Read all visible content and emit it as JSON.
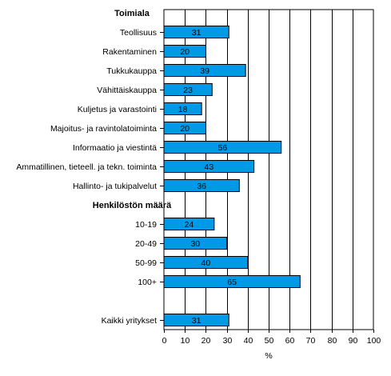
{
  "chart_data": {
    "type": "bar",
    "orientation": "horizontal",
    "xlabel": "%",
    "xlim": [
      0,
      100
    ],
    "xticks": [
      0,
      10,
      20,
      30,
      40,
      50,
      60,
      70,
      80,
      90,
      100
    ],
    "grid": "vertical",
    "bar_color": "#0099e6",
    "groups": [
      {
        "label": "Toimiala",
        "items": [
          {
            "category": "Teollisuus",
            "value": 31
          },
          {
            "category": "Rakentaminen",
            "value": 20
          },
          {
            "category": "Tukkukauppa",
            "value": 39
          },
          {
            "category": "Vähittäiskauppa",
            "value": 23
          },
          {
            "category": "Kuljetus ja varastointi",
            "value": 18
          },
          {
            "category": "Majoitus- ja ravintolatoiminta",
            "value": 20
          },
          {
            "category": "Informaatio ja viestintä",
            "value": 56
          },
          {
            "category": "Ammatillinen, tieteell. ja tekn. toiminta",
            "value": 43
          },
          {
            "category": "Hallinto- ja tukipalvelut",
            "value": 36
          }
        ]
      },
      {
        "label": "Henkilöstön määrä",
        "items": [
          {
            "category": "10-19",
            "value": 24
          },
          {
            "category": "20-49",
            "value": 30
          },
          {
            "category": "50-99",
            "value": 40
          },
          {
            "category": "100+",
            "value": 65
          }
        ]
      },
      {
        "label": "",
        "items": [
          {
            "category": "Kaikki yritykset",
            "value": 31
          }
        ]
      }
    ]
  }
}
